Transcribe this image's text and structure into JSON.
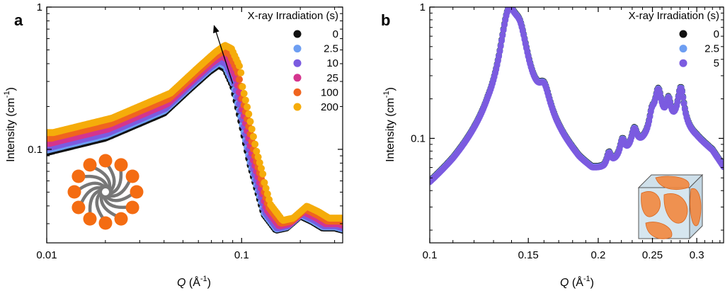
{
  "chart_data": [
    {
      "type": "scatter",
      "panel_label": "a",
      "xlabel_main": "Q",
      "xlabel_unit": "(Å",
      "xlabel_exp": "-1",
      "xlabel_close": ")",
      "ylabel_main": "Intensity (cm",
      "ylabel_exp": "-1",
      "ylabel_close": ")",
      "xscale": "log",
      "yscale": "log",
      "xlim": [
        0.01,
        0.33
      ],
      "ylim": [
        0.022,
        1.0
      ],
      "x_ticks": [
        {
          "v": 0.01,
          "label": "0.01"
        },
        {
          "v": 0.1,
          "label": "0.1"
        }
      ],
      "y_ticks": [
        {
          "v": 0.1,
          "label": "0.1"
        },
        {
          "v": 1,
          "label": "1"
        }
      ],
      "legend_title": "X-ray Irradiation (s)",
      "legend_position": "top-right",
      "series": [
        {
          "name": "0",
          "color": "#111111",
          "scale": 1.0,
          "shift": 1.0
        },
        {
          "name": "2.5",
          "color": "#6d9ef2",
          "scale": 1.04,
          "shift": 0.995
        },
        {
          "name": "10",
          "color": "#7b5be0",
          "scale": 1.08,
          "shift": 0.985
        },
        {
          "name": "25",
          "color": "#d4358e",
          "scale": 1.16,
          "shift": 0.965
        },
        {
          "name": "100",
          "color": "#f0641e",
          "scale": 1.26,
          "shift": 0.945
        },
        {
          "name": "200",
          "color": "#f5ac0a",
          "scale": 1.38,
          "shift": 0.925
        }
      ],
      "profile_points": [
        [
          0.01,
          0.095
        ],
        [
          0.02,
          0.12
        ],
        [
          0.04,
          0.18
        ],
        [
          0.055,
          0.27
        ],
        [
          0.068,
          0.35
        ],
        [
          0.076,
          0.39
        ],
        [
          0.082,
          0.37
        ],
        [
          0.09,
          0.28
        ],
        [
          0.1,
          0.15
        ],
        [
          0.11,
          0.08
        ],
        [
          0.13,
          0.035
        ],
        [
          0.15,
          0.027
        ],
        [
          0.17,
          0.028
        ],
        [
          0.2,
          0.034
        ],
        [
          0.23,
          0.031
        ],
        [
          0.26,
          0.028
        ],
        [
          0.3,
          0.028
        ],
        [
          0.33,
          0.027
        ]
      ],
      "trend_arrow": {
        "from": [
          0.09,
          0.29
        ],
        "to": [
          0.072,
          0.75
        ]
      },
      "inset": "micelle"
    },
    {
      "type": "scatter",
      "panel_label": "b",
      "xlabel_main": "Q",
      "xlabel_unit": "(Å",
      "xlabel_exp": "-1",
      "xlabel_close": ")",
      "ylabel_main": "Intensity (cm",
      "ylabel_exp": "-1",
      "ylabel_close": ")",
      "xscale": "log",
      "yscale": "log",
      "xlim": [
        0.1,
        0.335
      ],
      "ylim": [
        0.016,
        1.0
      ],
      "x_ticks": [
        {
          "v": 0.1,
          "label": "0.1"
        },
        {
          "v": 0.15,
          "label": "0.15"
        },
        {
          "v": 0.2,
          "label": "0.2"
        },
        {
          "v": 0.25,
          "label": "0.25"
        },
        {
          "v": 0.3,
          "label": "0.3"
        }
      ],
      "y_ticks": [
        {
          "v": 0.1,
          "label": "0.1"
        },
        {
          "v": 1,
          "label": "1"
        }
      ],
      "legend_title": "X-ray Irradiation (s)",
      "legend_position": "top-right",
      "series": [
        {
          "name": "0",
          "color": "#111111",
          "scale": 1.0
        },
        {
          "name": "2.5",
          "color": "#6d9ef2",
          "scale": 0.99
        },
        {
          "name": "5",
          "color": "#7b5be0",
          "scale": 0.98
        }
      ],
      "baseline_points": [
        [
          0.1,
          0.032
        ],
        [
          0.11,
          0.045
        ],
        [
          0.12,
          0.065
        ],
        [
          0.127,
          0.082
        ],
        [
          0.133,
          0.08
        ],
        [
          0.138,
          0.1
        ],
        [
          0.145,
          0.14
        ],
        [
          0.155,
          0.12
        ],
        [
          0.165,
          0.1
        ],
        [
          0.175,
          0.075
        ],
        [
          0.185,
          0.058
        ],
        [
          0.195,
          0.05
        ],
        [
          0.205,
          0.052
        ],
        [
          0.22,
          0.065
        ],
        [
          0.24,
          0.085
        ],
        [
          0.26,
          0.11
        ],
        [
          0.28,
          0.12
        ],
        [
          0.3,
          0.1
        ],
        [
          0.32,
          0.08
        ],
        [
          0.335,
          0.06
        ]
      ],
      "peaks": [
        {
          "q": 0.1385,
          "amp": 0.72,
          "w": 0.0045
        },
        {
          "q": 0.1445,
          "amp": 0.42,
          "w": 0.005
        },
        {
          "q": 0.16,
          "amp": 0.09,
          "w": 0.004
        },
        {
          "q": 0.209,
          "amp": 0.015,
          "w": 0.002
        },
        {
          "q": 0.221,
          "amp": 0.025,
          "w": 0.0025
        },
        {
          "q": 0.232,
          "amp": 0.035,
          "w": 0.003
        },
        {
          "q": 0.2495,
          "amp": 0.04,
          "w": 0.003
        },
        {
          "q": 0.256,
          "amp": 0.12,
          "w": 0.004
        },
        {
          "q": 0.267,
          "amp": 0.07,
          "w": 0.003
        },
        {
          "q": 0.281,
          "amp": 0.12,
          "w": 0.004
        }
      ],
      "inset": "cubic-phase"
    }
  ]
}
